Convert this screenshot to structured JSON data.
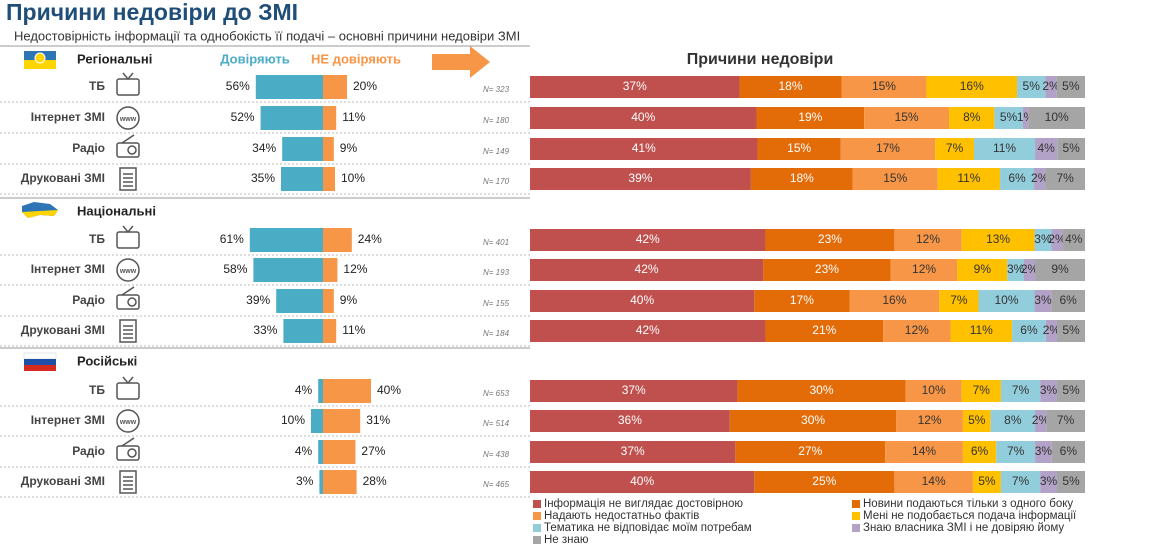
{
  "title": "Причини недовіри до ЗМІ",
  "subtitle": "Недостовірність інформації та однобокість її подачі – основні причини недовіри ЗМІ",
  "trust_header": {
    "trust": "Довіряють",
    "distrust": "НЕ довіряють",
    "trust_color": "#4bacc6",
    "distrust_color": "#f79646"
  },
  "reasons_title": "Причини недовіри",
  "reasons": [
    {
      "name": "Інформація не виглядає достовірною",
      "color": "#c0504d"
    },
    {
      "name": "Новини подаються тільки з одного боку",
      "color": "#e36c09"
    },
    {
      "name": "Надають недостатньо фактів",
      "color": "#f79646"
    },
    {
      "name": "Мені не подобається подача інформації",
      "color": "#ffc000"
    },
    {
      "name": "Тематика не відповідає моїм потребам",
      "color": "#92cddc"
    },
    {
      "name": "Знаю власника ЗМІ і не довіряю йому",
      "color": "#b2a2c7"
    },
    {
      "name": "Не знаю",
      "color": "#a5a5a5"
    }
  ],
  "groups": [
    {
      "name": "Регіональні",
      "rows": [
        {
          "label": "ТБ",
          "trust": {
            "values": [
              56,
              20
            ],
            "value_labels": [
              "56%",
              "20%"
            ]
          },
          "n": "N= 323",
          "reasons": {
            "values": [
              37,
              18,
              15,
              16,
              5,
              2,
              5
            ],
            "value_labels": [
              "37%",
              "18%",
              "15%",
              "16%",
              "5%",
              "2%",
              "5%"
            ]
          }
        },
        {
          "label": "Інтернет ЗМІ",
          "trust": {
            "values": [
              52,
              11
            ],
            "value_labels": [
              "52%",
              "11%"
            ]
          },
          "n": "N= 180",
          "reasons": {
            "values": [
              40,
              19,
              15,
              8,
              5,
              1,
              10
            ],
            "value_labels": [
              "40%",
              "19%",
              "15%",
              "8%",
              "5%",
              "1%",
              "10%"
            ]
          }
        },
        {
          "label": "Радіо",
          "trust": {
            "values": [
              34,
              9
            ],
            "value_labels": [
              "34%",
              "9%"
            ]
          },
          "n": "N= 149",
          "reasons": {
            "values": [
              41,
              15,
              17,
              7,
              11,
              4,
              5
            ],
            "value_labels": [
              "41%",
              "15%",
              "17%",
              "7%",
              "11%",
              "4%",
              "5%"
            ]
          }
        },
        {
          "label": "Друковані ЗМІ",
          "trust": {
            "values": [
              35,
              10
            ],
            "value_labels": [
              "35%",
              "10%"
            ]
          },
          "n": "N= 170",
          "reasons": {
            "values": [
              39,
              18,
              15,
              11,
              6,
              2,
              7
            ],
            "value_labels": [
              "39%",
              "18%",
              "15%",
              "11%",
              "6%",
              "2%",
              "7%"
            ]
          }
        }
      ]
    },
    {
      "name": "Національні",
      "rows": [
        {
          "label": "ТБ",
          "trust": {
            "values": [
              61,
              24
            ],
            "value_labels": [
              "61%",
              "24%"
            ]
          },
          "n": "N= 401",
          "reasons": {
            "values": [
              42,
              23,
              12,
              13,
              3,
              2,
              4
            ],
            "value_labels": [
              "42%",
              "23%",
              "12%",
              "13%",
              "3%",
              "2%",
              "4%"
            ]
          }
        },
        {
          "label": "Інтернет ЗМІ",
          "trust": {
            "values": [
              58,
              12
            ],
            "value_labels": [
              "58%",
              "12%"
            ]
          },
          "n": "N= 193",
          "reasons": {
            "values": [
              42,
              23,
              12,
              9,
              3,
              2,
              9
            ],
            "value_labels": [
              "42%",
              "23%",
              "12%",
              "9%",
              "3%",
              "2%",
              "9%"
            ]
          }
        },
        {
          "label": "Радіо",
          "trust": {
            "values": [
              39,
              9
            ],
            "value_labels": [
              "39%",
              "9%"
            ]
          },
          "n": "N= 155",
          "reasons": {
            "values": [
              40,
              17,
              16,
              7,
              10,
              3,
              6
            ],
            "value_labels": [
              "40%",
              "17%",
              "16%",
              "7%",
              "10%",
              "3%",
              "6%"
            ]
          }
        },
        {
          "label": "Друковані ЗМІ",
          "trust": {
            "values": [
              33,
              11
            ],
            "value_labels": [
              "33%",
              "11%"
            ]
          },
          "n": "N= 184",
          "reasons": {
            "values": [
              42,
              21,
              12,
              11,
              6,
              2,
              5
            ],
            "value_labels": [
              "42%",
              "21%",
              "12%",
              "11%",
              "6%",
              "2%",
              "5%"
            ]
          }
        }
      ]
    },
    {
      "name": "Російські",
      "rows": [
        {
          "label": "ТБ",
          "trust": {
            "values": [
              4,
              40
            ],
            "value_labels": [
              "4%",
              "40%"
            ]
          },
          "n": "N= 653",
          "reasons": {
            "values": [
              37,
              30,
              10,
              7,
              7,
              3,
              5
            ],
            "value_labels": [
              "37%",
              "30%",
              "10%",
              "7%",
              "7%",
              "3%",
              "5%"
            ]
          }
        },
        {
          "label": "Інтернет ЗМІ",
          "trust": {
            "values": [
              10,
              31
            ],
            "value_labels": [
              "10%",
              "31%"
            ]
          },
          "n": "N= 514",
          "reasons": {
            "values": [
              36,
              30,
              12,
              5,
              8,
              2,
              7
            ],
            "value_labels": [
              "36%",
              "30%",
              "12%",
              "5%",
              "8%",
              "2%",
              "7%"
            ]
          }
        },
        {
          "label": "Радіо",
          "trust": {
            "values": [
              4,
              27
            ],
            "value_labels": [
              "4%",
              "27%"
            ]
          },
          "n": "N= 438",
          "reasons": {
            "values": [
              37,
              27,
              14,
              6,
              7,
              3,
              6
            ],
            "value_labels": [
              "37%",
              "27%",
              "14%",
              "6%",
              "7%",
              "3%",
              "6%"
            ]
          }
        },
        {
          "label": "Друковані ЗМІ",
          "trust": {
            "values": [
              3,
              28
            ],
            "value_labels": [
              "3%",
              "28%"
            ]
          },
          "n": "N= 465",
          "reasons": {
            "values": [
              40,
              25,
              14,
              5,
              7,
              3,
              5
            ],
            "value_labels": [
              "40%",
              "25%",
              "14%",
              "5%",
              "7%",
              "3%",
              "5%"
            ]
          }
        }
      ]
    }
  ]
}
